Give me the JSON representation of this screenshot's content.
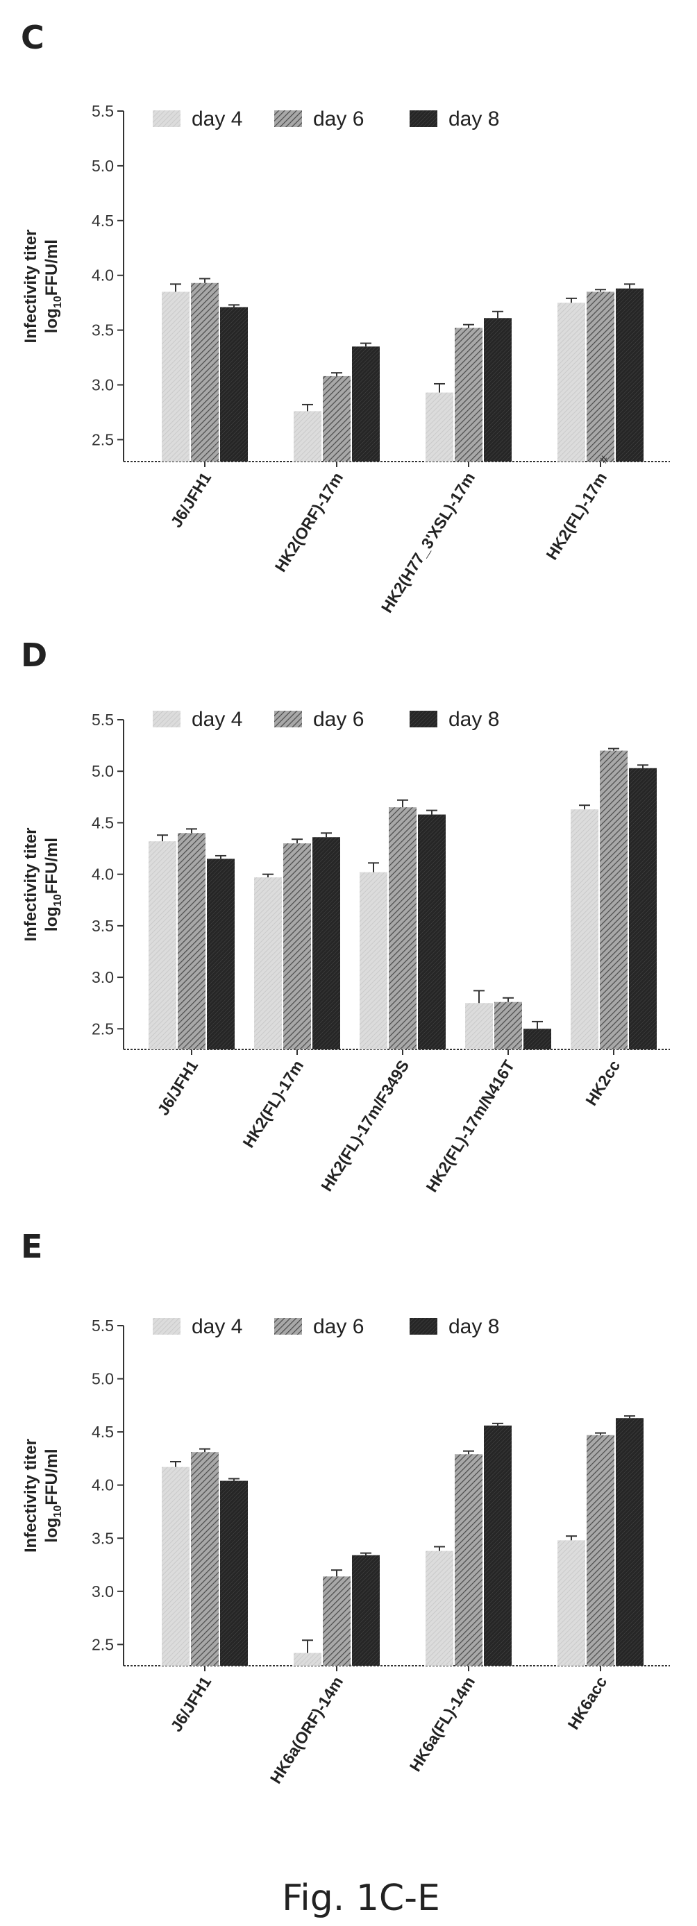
{
  "figure": {
    "caption": "Fig. 1C-E",
    "colors": {
      "day 4": "#d8d8d8",
      "day 6": "#8c8c8c",
      "day 8": "#262626",
      "axis": "#333333"
    }
  },
  "chart_data": [
    {
      "type": "bar",
      "panel": "C",
      "ylabel_line1": "Infectivity titer",
      "ylabel_line2_pre": "log",
      "ylabel_line2_sub": "10",
      "ylabel_line2_post": "FFU/ml",
      "ylim": [
        2.3,
        5.5
      ],
      "yticks": [
        "2.5",
        "3.0",
        "3.5",
        "4.0",
        "4.5",
        "5.0",
        "5.5"
      ],
      "legend_position": "top",
      "categories": [
        "J6/JFH1",
        "HK2(ORF)-17m",
        "HK2(H77_3'XSL)-17m",
        "HK2(FL)-17m"
      ],
      "category_superscripts": [
        "",
        "",
        "",
        "#"
      ],
      "series": [
        {
          "name": "day 4",
          "values": [
            3.85,
            2.76,
            2.93,
            3.75
          ],
          "errors": [
            0.07,
            0.06,
            0.08,
            0.04
          ]
        },
        {
          "name": "day 6",
          "values": [
            3.93,
            3.08,
            3.52,
            3.85
          ],
          "errors": [
            0.04,
            0.03,
            0.03,
            0.02
          ]
        },
        {
          "name": "day 8",
          "values": [
            3.71,
            3.35,
            3.61,
            3.88
          ],
          "errors": [
            0.02,
            0.03,
            0.06,
            0.04
          ]
        }
      ]
    },
    {
      "type": "bar",
      "panel": "D",
      "ylabel_line1": "Infectivity titer",
      "ylabel_line2_pre": "log",
      "ylabel_line2_sub": "10",
      "ylabel_line2_post": "FFU/ml",
      "ylim": [
        2.3,
        5.5
      ],
      "yticks": [
        "2.5",
        "3.0",
        "3.5",
        "4.0",
        "4.5",
        "5.0",
        "5.5"
      ],
      "legend_position": "top",
      "categories": [
        "J6/JFH1",
        "HK2(FL)-17m",
        "HK2(FL)-17m/F349S",
        "HK2(FL)-17m/N416T",
        "HK2cc"
      ],
      "category_superscripts": [
        "",
        "",
        "",
        "",
        ""
      ],
      "series": [
        {
          "name": "day 4",
          "values": [
            4.32,
            3.97,
            4.02,
            2.75,
            4.63
          ],
          "errors": [
            0.06,
            0.03,
            0.09,
            0.12,
            0.04
          ]
        },
        {
          "name": "day 6",
          "values": [
            4.4,
            4.3,
            4.65,
            2.76,
            5.2
          ],
          "errors": [
            0.04,
            0.04,
            0.07,
            0.04,
            0.02
          ]
        },
        {
          "name": "day 8",
          "values": [
            4.15,
            4.36,
            4.58,
            2.5,
            5.03
          ],
          "errors": [
            0.03,
            0.04,
            0.04,
            0.07,
            0.03
          ]
        }
      ]
    },
    {
      "type": "bar",
      "panel": "E",
      "ylabel_line1": "Infectivity titer",
      "ylabel_line2_pre": "log",
      "ylabel_line2_sub": "10",
      "ylabel_line2_post": "FFU/ml",
      "ylim": [
        2.3,
        5.5
      ],
      "yticks": [
        "2.5",
        "3.0",
        "3.5",
        "4.0",
        "4.5",
        "5.0",
        "5.5"
      ],
      "legend_position": "top",
      "categories": [
        "J6/JFH1",
        "HK6a(ORF)-14m",
        "HK6a(FL)-14m",
        "HK6acc"
      ],
      "category_superscripts": [
        "",
        "",
        "",
        ""
      ],
      "series": [
        {
          "name": "day 4",
          "values": [
            4.17,
            2.42,
            3.38,
            3.48
          ],
          "errors": [
            0.05,
            0.12,
            0.04,
            0.04
          ]
        },
        {
          "name": "day 6",
          "values": [
            4.31,
            3.14,
            4.29,
            4.47
          ],
          "errors": [
            0.03,
            0.06,
            0.03,
            0.02
          ]
        },
        {
          "name": "day 8",
          "values": [
            4.04,
            3.34,
            4.56,
            4.63
          ],
          "errors": [
            0.02,
            0.02,
            0.02,
            0.02
          ]
        }
      ]
    }
  ]
}
